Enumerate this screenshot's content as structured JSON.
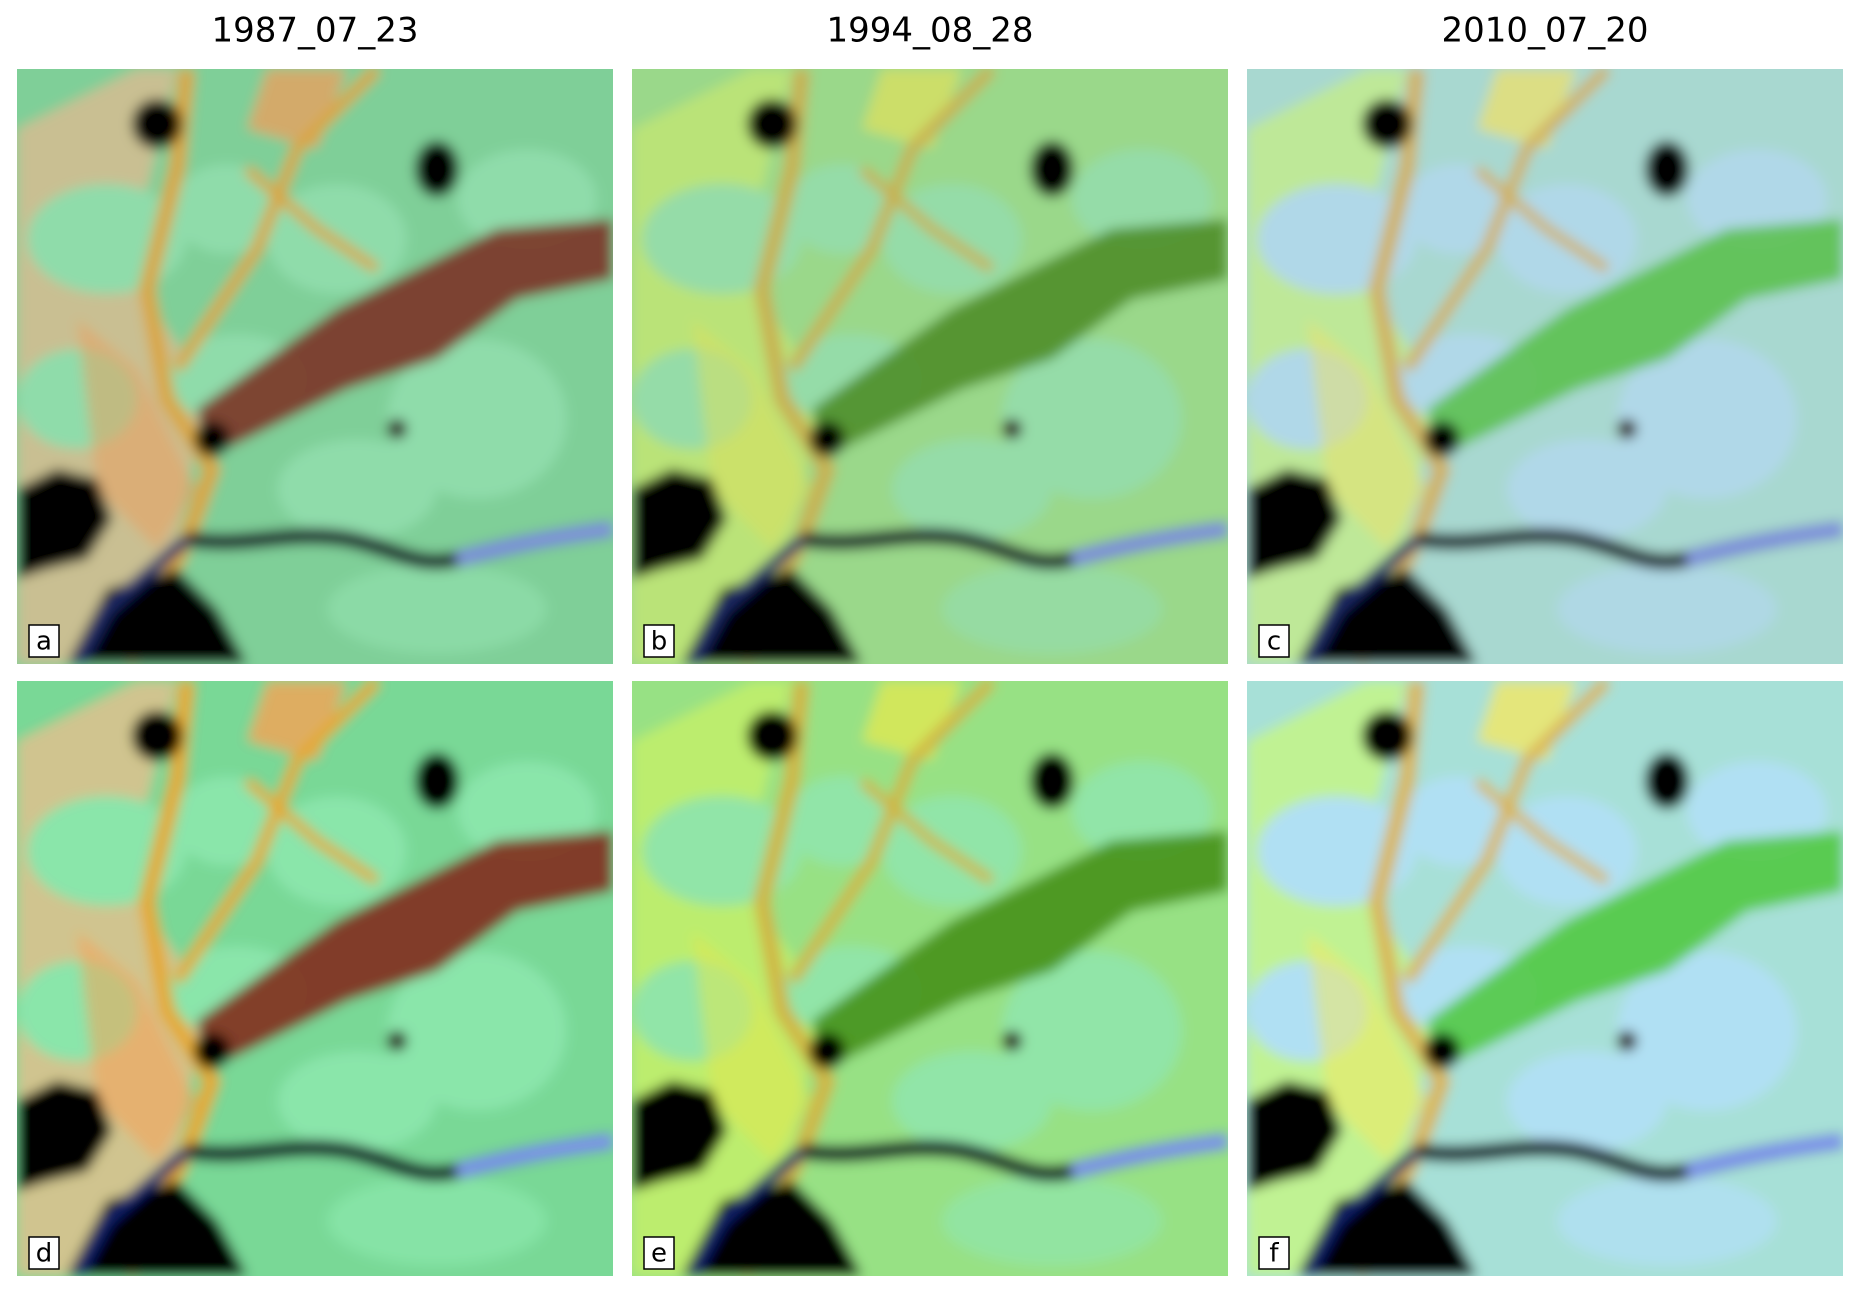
{
  "titles": [
    "1987_07_23",
    "1994_08_28",
    "2010_07_20"
  ],
  "panel_labels": [
    "a",
    "b",
    "c",
    "d",
    "e",
    "f"
  ]
}
